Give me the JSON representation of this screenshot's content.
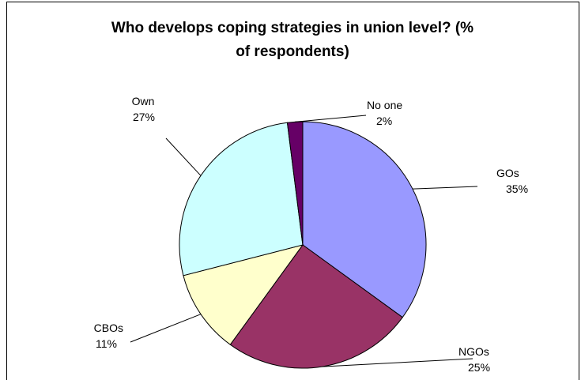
{
  "chart_data": {
    "type": "pie",
    "title": "Who develops coping strategies in union level? (% of respondents)",
    "title_lines": [
      "Who develops coping strategies in union level? (%",
      "of respondents)"
    ],
    "legend": "none",
    "slices": [
      {
        "label": "GOs",
        "value": 35,
        "display": "35%",
        "color": "#9999ff"
      },
      {
        "label": "NGOs",
        "value": 25,
        "display": "25%",
        "color": "#993366"
      },
      {
        "label": "CBOs",
        "value": 11,
        "display": "11%",
        "color": "#ffffcc"
      },
      {
        "label": "Own",
        "value": 27,
        "display": "27%",
        "color": "#ccffff"
      },
      {
        "label": "No one",
        "label_text": "No one",
        "value": 2,
        "display": "2%",
        "color": "#660066"
      }
    ]
  }
}
